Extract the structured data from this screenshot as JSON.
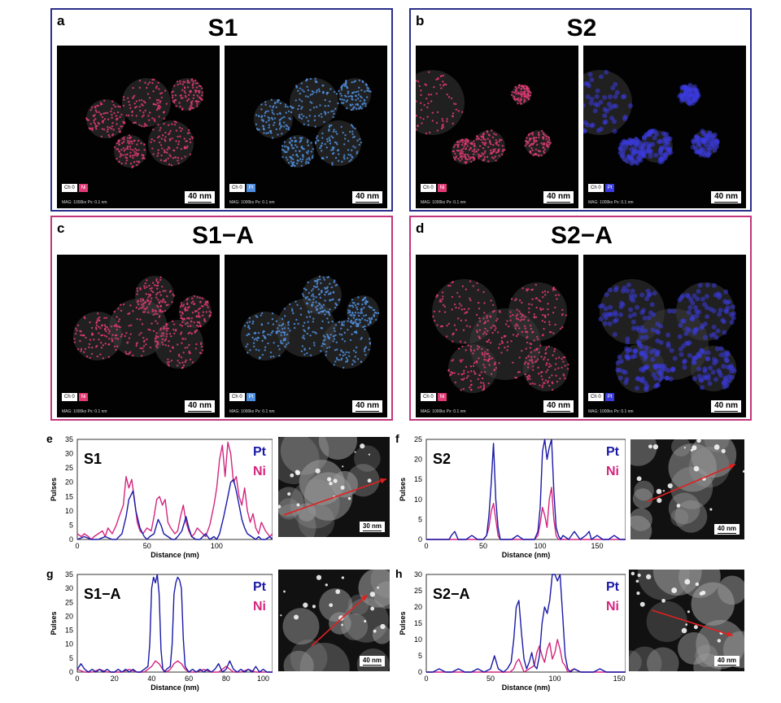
{
  "panels": {
    "a": {
      "letter": "a",
      "title": "S1",
      "maps": [
        {
          "element": "Ni",
          "channel": "Ch 0",
          "scale": "40 nm",
          "mag": "MAG: 1000kx   Px: 0.1 nm",
          "color": "#e23a74"
        },
        {
          "element": "Pt",
          "channel": "Ch 0",
          "scale": "40 nm",
          "mag": "MAG: 1000kx   Px: 0.1 nm",
          "color": "#4f8fe0"
        }
      ]
    },
    "b": {
      "letter": "b",
      "title": "S2",
      "maps": [
        {
          "element": "Ni",
          "channel": "Ch 0",
          "scale": "40 nm",
          "mag": "MAG: 1000kx   Px: 0.1 nm",
          "color": "#e23a74"
        },
        {
          "element": "Pt",
          "channel": "Ch 0",
          "scale": "40 nm",
          "mag": "MAG: 1000kx   Px: 0.1 nm",
          "color": "#3b3be0"
        }
      ]
    },
    "c": {
      "letter": "c",
      "title": "S1−A",
      "maps": [
        {
          "element": "Ni",
          "channel": "Ch 0",
          "scale": "40 nm",
          "mag": "MAG: 1000kx   Px: 0.1 nm",
          "color": "#e23a74"
        },
        {
          "element": "Pt",
          "channel": "Ch 0",
          "scale": "40 nm",
          "mag": "MAG: 1000kx   Px: 0.1 nm",
          "color": "#4f8fe0"
        }
      ]
    },
    "d": {
      "letter": "d",
      "title": "S2−A",
      "maps": [
        {
          "element": "Ni",
          "channel": "Ch 0",
          "scale": "40 nm",
          "mag": "MAG: 1000kx   Px: 0.1 nm",
          "color": "#e23a74"
        },
        {
          "element": "Pt",
          "channel": "Ch 0",
          "scale": "40 nm",
          "mag": "MAG: 1000kx   Px: 0.1 nm",
          "color": "#3b3be0"
        }
      ]
    }
  },
  "colors": {
    "pt": "#1a1aa8",
    "ni": "#d4257e",
    "blue_frame": "#2a2f8a",
    "pink_frame": "#c2357a",
    "arrow": "#e02020"
  },
  "insets": {
    "e": "30 nm",
    "f": "40 nm",
    "g": "40 nm",
    "h": "40 nm"
  },
  "chart_data": [
    {
      "id": "e",
      "type": "line",
      "letter": "e",
      "label": "S1",
      "xlabel": "Distance (nm)",
      "ylabel": "Pulses",
      "xlim": [
        0,
        140
      ],
      "ylim": [
        0,
        35
      ],
      "xticks": [
        0,
        50,
        100
      ],
      "yticks": [
        0,
        5,
        10,
        15,
        20,
        25,
        30,
        35
      ],
      "series": [
        {
          "name": "Pt",
          "x": [
            0,
            5,
            10,
            15,
            20,
            25,
            28,
            30,
            32,
            35,
            37,
            40,
            42,
            45,
            48,
            50,
            52,
            55,
            58,
            60,
            62,
            65,
            68,
            70,
            72,
            75,
            78,
            80,
            82,
            85,
            88,
            90,
            92,
            95,
            98,
            100,
            102,
            105,
            108,
            110,
            112,
            114,
            116,
            118,
            120,
            122,
            125,
            128,
            130,
            132,
            135,
            138,
            140
          ],
          "y": [
            0,
            1,
            0,
            0,
            1,
            0,
            0,
            1,
            2,
            8,
            14,
            17,
            10,
            4,
            1,
            0,
            1,
            2,
            7,
            5,
            2,
            1,
            0,
            0,
            1,
            3,
            8,
            4,
            1,
            0,
            0,
            1,
            2,
            0,
            1,
            0,
            2,
            8,
            15,
            20,
            21,
            17,
            12,
            7,
            4,
            2,
            1,
            0,
            1,
            0,
            0,
            1,
            0
          ]
        },
        {
          "name": "Ni",
          "x": [
            0,
            3,
            5,
            8,
            10,
            12,
            15,
            18,
            20,
            22,
            25,
            28,
            30,
            33,
            35,
            37,
            39,
            41,
            43,
            45,
            47,
            50,
            53,
            55,
            57,
            59,
            61,
            63,
            65,
            67,
            70,
            72,
            74,
            76,
            78,
            80,
            82,
            84,
            86,
            88,
            90,
            92,
            95,
            98,
            100,
            102,
            104,
            106,
            108,
            110,
            112,
            114,
            116,
            118,
            120,
            122,
            124,
            126,
            128,
            130,
            132,
            135,
            138,
            140
          ],
          "y": [
            2,
            1,
            2,
            1,
            0,
            1,
            2,
            3,
            1,
            4,
            2,
            5,
            8,
            12,
            22,
            18,
            21,
            14,
            6,
            3,
            2,
            4,
            3,
            8,
            14,
            15,
            12,
            14,
            6,
            4,
            2,
            3,
            8,
            12,
            6,
            3,
            1,
            2,
            4,
            3,
            2,
            1,
            5,
            12,
            18,
            28,
            33,
            22,
            34,
            30,
            20,
            22,
            15,
            12,
            18,
            10,
            6,
            9,
            4,
            2,
            6,
            3,
            1,
            2
          ]
        }
      ]
    },
    {
      "id": "f",
      "type": "line",
      "letter": "f",
      "label": "S2",
      "xlabel": "Distance (nm)",
      "ylabel": "Pulses",
      "xlim": [
        0,
        175
      ],
      "ylim": [
        0,
        25
      ],
      "xticks": [
        0,
        50,
        100,
        150
      ],
      "yticks": [
        0,
        5,
        10,
        15,
        20,
        25
      ],
      "series": [
        {
          "name": "Pt",
          "x": [
            0,
            10,
            20,
            22,
            25,
            28,
            30,
            35,
            40,
            45,
            50,
            53,
            55,
            57,
            59,
            61,
            63,
            65,
            70,
            75,
            80,
            85,
            90,
            95,
            98,
            100,
            102,
            104,
            106,
            108,
            110,
            112,
            114,
            116,
            118,
            120,
            125,
            130,
            135,
            140,
            143,
            145,
            150,
            155,
            160,
            165,
            170,
            175
          ],
          "y": [
            0,
            0,
            0,
            1,
            2,
            0,
            0,
            0,
            1,
            0,
            0,
            1,
            6,
            14,
            24,
            10,
            3,
            0,
            0,
            0,
            1,
            0,
            0,
            0,
            2,
            8,
            22,
            26,
            20,
            23,
            25,
            12,
            3,
            1,
            0,
            1,
            0,
            2,
            0,
            1,
            2,
            0,
            1,
            0,
            0,
            1,
            0,
            0
          ]
        },
        {
          "name": "Ni",
          "x": [
            0,
            20,
            40,
            50,
            53,
            55,
            57,
            59,
            61,
            63,
            65,
            80,
            95,
            98,
            100,
            102,
            104,
            106,
            108,
            110,
            112,
            114,
            116,
            120,
            140,
            160,
            175
          ],
          "y": [
            0,
            0,
            0,
            0,
            1,
            3,
            7,
            9,
            5,
            1,
            0,
            0,
            0,
            1,
            4,
            8,
            6,
            3,
            10,
            13,
            5,
            1,
            0,
            0,
            0,
            0,
            0
          ]
        }
      ]
    },
    {
      "id": "g",
      "type": "line",
      "letter": "g",
      "label": "S1−A",
      "xlabel": "Distance (nm)",
      "ylabel": "Pulses",
      "xlim": [
        0,
        105
      ],
      "ylim": [
        0,
        35
      ],
      "xticks": [
        0,
        20,
        40,
        60,
        80,
        100
      ],
      "yticks": [
        0,
        5,
        10,
        15,
        20,
        25,
        30,
        35
      ],
      "series": [
        {
          "name": "Pt",
          "x": [
            0,
            2,
            4,
            6,
            8,
            10,
            12,
            14,
            16,
            18,
            20,
            22,
            24,
            26,
            28,
            30,
            32,
            34,
            36,
            38,
            39,
            40,
            41,
            42,
            43,
            44,
            45,
            46,
            47,
            48,
            50,
            51,
            52,
            53,
            54,
            55,
            56,
            57,
            58,
            60,
            62,
            64,
            66,
            68,
            70,
            72,
            74,
            76,
            78,
            80,
            82,
            84,
            86,
            88,
            90,
            92,
            94,
            96,
            98,
            100,
            102,
            105
          ],
          "y": [
            1,
            3,
            1,
            0,
            1,
            0,
            1,
            0,
            1,
            0,
            0,
            1,
            0,
            1,
            0,
            1,
            0,
            0,
            1,
            2,
            10,
            30,
            34,
            32,
            35,
            28,
            8,
            1,
            0,
            1,
            2,
            10,
            28,
            32,
            34,
            33,
            30,
            12,
            2,
            0,
            1,
            0,
            1,
            0,
            1,
            0,
            1,
            3,
            0,
            1,
            4,
            1,
            0,
            1,
            0,
            1,
            0,
            2,
            0,
            1,
            0,
            0
          ]
        },
        {
          "name": "Ni",
          "x": [
            0,
            4,
            8,
            12,
            16,
            20,
            24,
            28,
            32,
            36,
            38,
            40,
            42,
            44,
            46,
            48,
            50,
            52,
            54,
            56,
            58,
            60,
            64,
            68,
            72,
            76,
            80,
            84,
            88,
            92,
            96,
            100,
            105
          ],
          "y": [
            1,
            0,
            0,
            1,
            0,
            0,
            0,
            1,
            0,
            0,
            1,
            2,
            4,
            3,
            1,
            0,
            1,
            3,
            4,
            3,
            1,
            0,
            0,
            1,
            0,
            0,
            2,
            0,
            0,
            1,
            0,
            0,
            0
          ]
        }
      ]
    },
    {
      "id": "h",
      "type": "line",
      "letter": "h",
      "label": "S2−A",
      "xlabel": "Distance (nm)",
      "ylabel": "Pulses",
      "xlim": [
        0,
        155
      ],
      "ylim": [
        0,
        30
      ],
      "xticks": [
        0,
        50,
        100,
        150
      ],
      "yticks": [
        0,
        5,
        10,
        15,
        20,
        25,
        30
      ],
      "series": [
        {
          "name": "Pt",
          "x": [
            0,
            5,
            10,
            15,
            20,
            25,
            30,
            35,
            40,
            45,
            50,
            53,
            56,
            60,
            63,
            66,
            68,
            70,
            72,
            74,
            76,
            78,
            80,
            82,
            84,
            86,
            88,
            90,
            92,
            94,
            96,
            98,
            100,
            102,
            104,
            106,
            108,
            110,
            112,
            115,
            120,
            125,
            130,
            135,
            140,
            145,
            150,
            155
          ],
          "y": [
            0,
            0,
            1,
            0,
            0,
            1,
            0,
            0,
            1,
            0,
            1,
            5,
            1,
            0,
            1,
            3,
            10,
            20,
            22,
            12,
            4,
            1,
            3,
            6,
            2,
            1,
            5,
            15,
            20,
            18,
            22,
            30,
            32,
            28,
            31,
            18,
            5,
            1,
            0,
            1,
            0,
            0,
            0,
            1,
            0,
            0,
            0,
            0
          ]
        },
        {
          "name": "Ni",
          "x": [
            0,
            20,
            40,
            60,
            65,
            68,
            70,
            72,
            74,
            76,
            80,
            84,
            86,
            88,
            90,
            92,
            94,
            96,
            98,
            100,
            102,
            104,
            106,
            108,
            110,
            115,
            120,
            140,
            155
          ],
          "y": [
            0,
            0,
            0,
            0,
            0,
            1,
            3,
            4,
            2,
            0,
            1,
            2,
            6,
            8,
            5,
            3,
            7,
            9,
            4,
            6,
            10,
            7,
            3,
            2,
            0,
            1,
            0,
            0,
            0
          ]
        }
      ]
    }
  ]
}
